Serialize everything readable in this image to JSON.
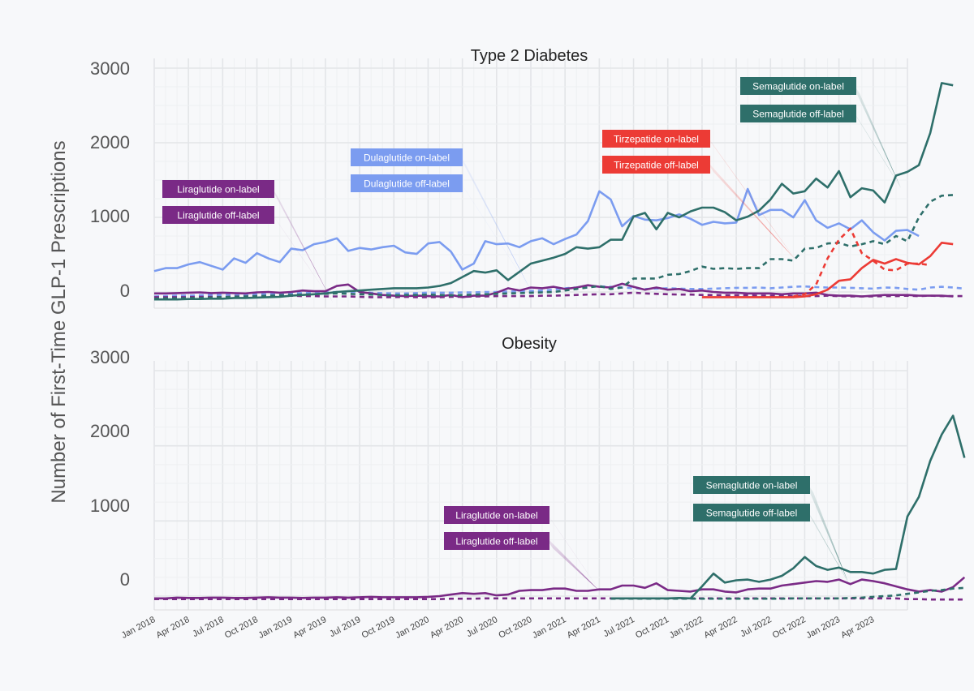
{
  "ylabel": "Number of First-Time GLP-1 Prescriptions",
  "xticks": [
    "Jan 2018",
    "Apr 2018",
    "Jul 2018",
    "Oct 2018",
    "Jan 2019",
    "Apr 2019",
    "Jul 2019",
    "Oct 2019",
    "Jan 2020",
    "Apr 2020",
    "Jul 2020",
    "Oct 2020",
    "Jan 2021",
    "Apr 2021",
    "Jul 2021",
    "Oct 2021",
    "Jan 2022",
    "Apr 2022",
    "Jul 2022",
    "Oct 2022",
    "Jan 2023",
    "Apr 2023"
  ],
  "yticks": [
    "0",
    "1000",
    "2000",
    "3000"
  ],
  "colors": {
    "semaglutide": "#2e6f6a",
    "dulaglutide": "#7b9cf0",
    "liraglutide": "#7a2a86",
    "tirzepatide": "#ec3b35"
  },
  "chart_data": [
    {
      "type": "line",
      "title": "Type 2 Diabetes",
      "x_start": "2018-01",
      "x_step": "month",
      "ylim": [
        -150,
        3000
      ],
      "grid": true,
      "series": [
        {
          "name": "Dulaglutide on-label",
          "drug": "dulaglutide",
          "dash": false,
          "start": 0,
          "values": [
            280,
            320,
            320,
            370,
            400,
            350,
            300,
            450,
            390,
            520,
            450,
            400,
            580,
            560,
            640,
            670,
            720,
            550,
            590,
            570,
            600,
            620,
            530,
            510,
            650,
            670,
            540,
            300,
            380,
            680,
            640,
            650,
            600,
            680,
            720,
            640,
            710,
            770,
            950,
            1350,
            1240,
            880,
            1020,
            970,
            960,
            990,
            1040,
            980,
            900,
            940,
            920,
            930,
            1380,
            1030,
            1100,
            1100,
            1000,
            1230,
            960,
            860,
            920,
            840,
            960,
            800,
            690,
            820,
            830,
            750
          ]
        },
        {
          "name": "Dulaglutide off-label",
          "drug": "dulaglutide",
          "dash": true,
          "start": 0,
          "values": [
            -60,
            -55,
            -50,
            -50,
            -45,
            -40,
            -40,
            -35,
            -35,
            -30,
            -30,
            -25,
            -20,
            -15,
            -10,
            -5,
            0,
            0,
            0,
            -10,
            -15,
            -20,
            -20,
            -15,
            -10,
            -10,
            -10,
            -5,
            -5,
            0,
            0,
            5,
            10,
            15,
            20,
            30,
            50,
            60,
            70,
            75,
            70,
            60,
            50,
            40,
            45,
            50,
            45,
            40,
            40,
            45,
            50,
            55,
            55,
            60,
            50,
            60,
            70,
            75,
            65,
            60,
            60,
            55,
            50,
            45,
            60,
            55,
            40,
            30,
            60,
            70,
            60,
            45
          ]
        },
        {
          "name": "Liraglutide on-label",
          "drug": "liraglutide",
          "dash": false,
          "start": 0,
          "values": [
            -20,
            -20,
            -15,
            -10,
            -5,
            -15,
            -10,
            -15,
            -20,
            -5,
            0,
            -10,
            0,
            20,
            10,
            10,
            80,
            100,
            0,
            -20,
            -40,
            -50,
            -55,
            -50,
            -55,
            -60,
            -40,
            -70,
            -50,
            -50,
            -10,
            50,
            20,
            60,
            50,
            70,
            40,
            60,
            90,
            70,
            60,
            110,
            70,
            30,
            60,
            30,
            40,
            10,
            20,
            0,
            -10,
            -10,
            -20,
            -20,
            -20,
            -30,
            -20,
            -20,
            -10,
            -40,
            -50,
            -50,
            -60,
            -50,
            -40,
            -40,
            -40,
            -50,
            -50,
            -50,
            -60
          ]
        },
        {
          "name": "Liraglutide off-label",
          "drug": "liraglutide",
          "dash": true,
          "start": 0,
          "values": [
            -70,
            -70,
            -70,
            -70,
            -65,
            -65,
            -70,
            -60,
            -60,
            -55,
            -55,
            -60,
            -50,
            -55,
            -55,
            -60,
            -60,
            -60,
            -65,
            -70,
            -70,
            -70,
            -65,
            -70,
            -70,
            -70,
            -65,
            -65,
            -60,
            -60,
            -55,
            -55,
            -55,
            -55,
            -50,
            -50,
            -45,
            -40,
            -35,
            -30,
            -30,
            -20,
            -10,
            -20,
            -25,
            -30,
            -35,
            -35,
            -40,
            -40,
            -45,
            -45,
            -45,
            -50,
            -50,
            -50,
            -55,
            -55,
            -55,
            -50,
            -55,
            -60,
            -60,
            -60,
            -55,
            -55,
            -50,
            -55,
            -50,
            -55,
            -55,
            -55
          ]
        },
        {
          "name": "Semaglutide on-label",
          "drug": "semaglutide",
          "dash": false,
          "start": 0,
          "values": [
            -100,
            -100,
            -100,
            -95,
            -95,
            -90,
            -90,
            -80,
            -80,
            -75,
            -70,
            -65,
            -50,
            -40,
            -30,
            -20,
            0,
            10,
            20,
            30,
            40,
            50,
            50,
            50,
            60,
            80,
            120,
            200,
            280,
            260,
            290,
            160,
            270,
            380,
            420,
            460,
            510,
            600,
            580,
            600,
            700,
            700,
            1010,
            1060,
            840,
            1060,
            1000,
            1080,
            1130,
            1130,
            1070,
            960,
            1010,
            1090,
            1240,
            1450,
            1320,
            1350,
            1520,
            1400,
            1620,
            1270,
            1390,
            1360,
            1200,
            1560,
            1610,
            1700,
            2130,
            2800,
            2770
          ]
        },
        {
          "name": "Semaglutide off-label",
          "drug": "semaglutide",
          "dash": true,
          "start": 0,
          "values": [
            -90,
            -85,
            -85,
            -80,
            -80,
            -75,
            -70,
            -65,
            -60,
            -55,
            -50,
            -45,
            -40,
            -35,
            -30,
            -25,
            -20,
            -25,
            -30,
            -35,
            -40,
            -45,
            -40,
            -40,
            -35,
            -40,
            -45,
            -40,
            -35,
            -30,
            -25,
            -20,
            -15,
            -10,
            -5,
            0,
            20,
            40,
            60,
            80,
            40,
            60,
            180,
            180,
            180,
            230,
            240,
            280,
            340,
            310,
            320,
            310,
            320,
            320,
            440,
            440,
            420,
            580,
            590,
            650,
            660,
            610,
            640,
            680,
            640,
            750,
            680,
            1000,
            1210,
            1290,
            1300
          ]
        },
        {
          "name": "Tirzepatide on-label",
          "drug": "tirzepatide",
          "dash": false,
          "start": 48,
          "values": [
            -70,
            -70,
            -70,
            -70,
            -70,
            -70,
            -70,
            -70,
            -70,
            -60,
            -30,
            30,
            150,
            170,
            320,
            430,
            380,
            440,
            390,
            370,
            480,
            660,
            640
          ]
        },
        {
          "name": "Tirzepatide off-label",
          "drug": "tirzepatide",
          "dash": true,
          "start": 56,
          "values": [
            -60,
            -30,
            100,
            450,
            700,
            850,
            520,
            420,
            300,
            290,
            380,
            380,
            360
          ]
        }
      ],
      "annotations": [
        {
          "label": "Liraglutide on-label",
          "drug": "liraglutide"
        },
        {
          "label": "Liraglutide off-label",
          "drug": "liraglutide"
        },
        {
          "label": "Dulaglutide on-label",
          "drug": "dulaglutide"
        },
        {
          "label": "Dulaglutide off-label",
          "drug": "dulaglutide"
        },
        {
          "label": "Tirzepatide on-label",
          "drug": "tirzepatide"
        },
        {
          "label": "Tirzepatide off-label",
          "drug": "tirzepatide"
        },
        {
          "label": "Semaglutide on-label",
          "drug": "semaglutide"
        },
        {
          "label": "Semaglutide off-label",
          "drug": "semaglutide"
        }
      ]
    },
    {
      "type": "line",
      "title": "Obesity",
      "x_start": "2018-01",
      "x_step": "month",
      "ylim": [
        -150,
        3000
      ],
      "grid": true,
      "series": [
        {
          "name": "Liraglutide on-label",
          "drug": "liraglutide",
          "dash": false,
          "start": 0,
          "values": [
            -30,
            -30,
            -20,
            -25,
            -25,
            -20,
            -20,
            -25,
            -25,
            -20,
            -15,
            -20,
            -20,
            -25,
            -20,
            -20,
            -15,
            -20,
            -15,
            -10,
            -15,
            -15,
            -15,
            -15,
            -10,
            0,
            20,
            40,
            30,
            40,
            10,
            20,
            70,
            80,
            80,
            100,
            100,
            70,
            70,
            90,
            90,
            140,
            140,
            110,
            170,
            80,
            70,
            60,
            90,
            90,
            60,
            50,
            90,
            100,
            100,
            140,
            160,
            180,
            200,
            190,
            220,
            160,
            220,
            200,
            170,
            130,
            90,
            60,
            80,
            60,
            120,
            250
          ]
        },
        {
          "name": "Liraglutide off-label",
          "drug": "liraglutide",
          "dash": true,
          "start": 0,
          "values": [
            -40,
            -40,
            -40,
            -40,
            -40,
            -40,
            -40,
            -40,
            -40,
            -40,
            -40,
            -40,
            -40,
            -40,
            -40,
            -40,
            -40,
            -40,
            -40,
            -40,
            -40,
            -40,
            -40,
            -40,
            -40,
            -40,
            -35,
            -35,
            -35,
            -30,
            -30,
            -30,
            -30,
            -30,
            -30,
            -30,
            -30,
            -30,
            -30,
            -30,
            -30,
            -30,
            -30,
            -30,
            -30,
            -30,
            -30,
            -30,
            -30,
            -30,
            -30,
            -30,
            -30,
            -30,
            -30,
            -30,
            -30,
            -30,
            -30,
            -30,
            -30,
            -30,
            -30,
            -30,
            -30,
            -30,
            -40,
            -40,
            -45,
            -45,
            -45,
            -45
          ]
        },
        {
          "name": "Semaglutide on-label",
          "drug": "semaglutide",
          "dash": false,
          "start": 40,
          "values": [
            -30,
            -30,
            -30,
            -30,
            -30,
            -30,
            -25,
            -30,
            130,
            300,
            180,
            210,
            220,
            190,
            220,
            270,
            370,
            520,
            400,
            350,
            380,
            320,
            320,
            300,
            350,
            360,
            1060,
            1320,
            1800,
            2150,
            2400,
            1840
          ]
        },
        {
          "name": "Semaglutide off-label",
          "drug": "semaglutide",
          "dash": true,
          "start": 40,
          "values": [
            -35,
            -35,
            -35,
            -35,
            -35,
            -35,
            -35,
            -35,
            -35,
            -35,
            -35,
            -35,
            -35,
            -35,
            -35,
            -35,
            -30,
            -30,
            -30,
            -30,
            -30,
            -25,
            -20,
            -10,
            0,
            10,
            30,
            50,
            70,
            80,
            100,
            110
          ]
        }
      ],
      "annotations": [
        {
          "label": "Liraglutide on-label",
          "drug": "liraglutide"
        },
        {
          "label": "Liraglutide off-label",
          "drug": "liraglutide"
        },
        {
          "label": "Semaglutide on-label",
          "drug": "semaglutide"
        },
        {
          "label": "Semaglutide off-label",
          "drug": "semaglutide"
        }
      ]
    }
  ]
}
